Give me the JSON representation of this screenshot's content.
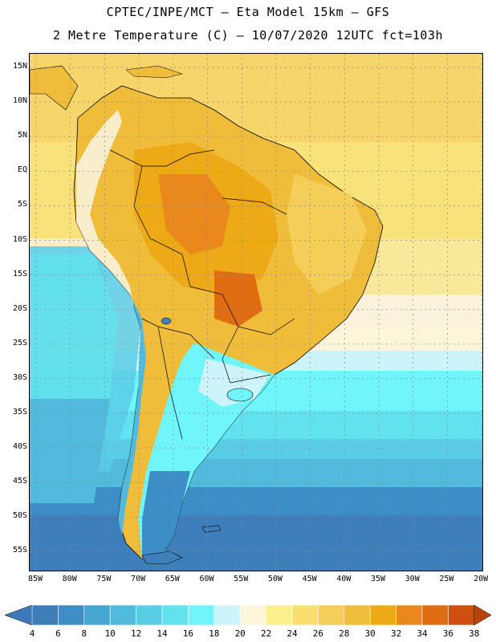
{
  "header": {
    "line1": "CPTEC/INPE/MCT –  Eta Model 15km – GFS",
    "line2": "2 Metre Temperature (C) – 10/07/2020 12UTC fct=103h"
  },
  "map": {
    "region": "South America",
    "lon_range": [
      -85,
      -20
    ],
    "lat_range": [
      -60,
      15
    ],
    "grid": "dotted",
    "lat_labels": [
      "15N",
      "10N",
      "5N",
      "EQ",
      "5S",
      "10S",
      "15S",
      "20S",
      "25S",
      "30S",
      "35S",
      "40S",
      "45S",
      "50S",
      "55S"
    ],
    "lon_labels": [
      "85W",
      "80W",
      "75W",
      "70W",
      "65W",
      "60W",
      "55W",
      "50W",
      "45W",
      "40W",
      "35W",
      "30W",
      "25W",
      "20W"
    ]
  },
  "colorbar": {
    "labels": [
      "4",
      "6",
      "8",
      "10",
      "12",
      "14",
      "16",
      "18",
      "20",
      "22",
      "24",
      "26",
      "28",
      "30",
      "32",
      "34",
      "36",
      "38"
    ],
    "colors": {
      "below": "#3d79b8",
      "c1": "#3e7eba",
      "c2": "#3d8ec7",
      "c3": "#47a6d2",
      "c4": "#52bbdd",
      "c5": "#5acde6",
      "c6": "#62e2ee",
      "c7": "#6ff5fa",
      "c8": "#cdf4fb",
      "c9": "#fdf5da",
      "c10": "#fbf08e",
      "c11": "#f9df6d",
      "c12": "#f5ce59",
      "c13": "#f0bd3a",
      "c14": "#eda916",
      "c15": "#e9891d",
      "c16": "#e06d12",
      "c17": "#d04f0f",
      "above": "#b8440c"
    }
  }
}
